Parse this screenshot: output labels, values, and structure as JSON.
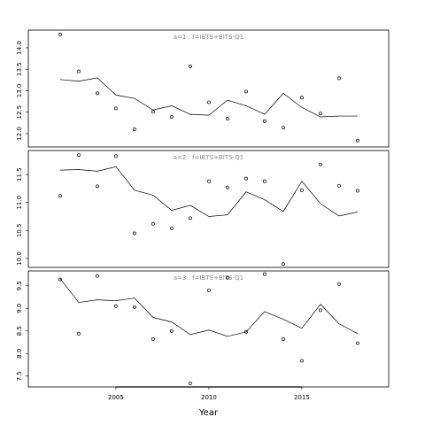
{
  "chart_data": [
    {
      "type": "line",
      "title": "a=1 : f=IBTS+BITS-Q1",
      "x": [
        2002,
        2003,
        2004,
        2005,
        2006,
        2007,
        2008,
        2009,
        2010,
        2011,
        2012,
        2013,
        2014,
        2015,
        2016,
        2017,
        2018
      ],
      "series": [
        {
          "style": "points",
          "color": "#000000",
          "values": [
            14.31,
            13.45,
            12.94,
            12.59,
            12.1,
            12.51,
            12.39,
            13.57,
            12.73,
            12.35,
            12.98,
            12.29,
            12.14,
            12.84,
            12.47,
            13.29,
            11.84
          ]
        },
        {
          "style": "line",
          "color": "#000000",
          "values": [
            13.26,
            13.22,
            13.3,
            12.9,
            12.82,
            12.55,
            12.65,
            12.45,
            12.43,
            12.78,
            12.65,
            12.45,
            12.94,
            12.61,
            12.39,
            12.41,
            12.41
          ]
        }
      ],
      "xlim": [
        2000.29,
        2019.67
      ],
      "ylim": [
        11.69,
        14.41
      ],
      "yticks": [
        {
          "value": 12,
          "label": "12.0"
        },
        12.5,
        {
          "value": 13,
          "label": "13.0"
        },
        13.5,
        {
          "value": 14,
          "label": "14.0"
        }
      ]
    },
    {
      "type": "line",
      "title": "a=2 : f=IBTS+BITS-Q1",
      "x": [
        2002,
        2003,
        2004,
        2005,
        2006,
        2007,
        2008,
        2009,
        2010,
        2011,
        2012,
        2013,
        2014,
        2015,
        2016,
        2017,
        2018
      ],
      "series": [
        {
          "style": "points",
          "color": "#000000",
          "values": [
            11.12,
            11.85,
            11.29,
            11.83,
            10.45,
            10.62,
            10.54,
            10.72,
            11.38,
            11.27,
            11.43,
            11.38,
            9.9,
            11.22,
            11.68,
            11.3,
            11.21
          ]
        },
        {
          "style": "line",
          "color": "#000000",
          "values": [
            11.58,
            11.59,
            11.56,
            11.64,
            11.22,
            11.13,
            10.86,
            10.95,
            10.75,
            10.78,
            11.19,
            11.05,
            10.84,
            11.38,
            10.98,
            10.76,
            10.83
          ]
        }
      ],
      "xlim": [
        2000.29,
        2019.67
      ],
      "ylim": [
        9.84,
        11.93
      ],
      "yticks": [
        {
          "value": 10,
          "label": "10.0"
        },
        10.5,
        {
          "value": 11,
          "label": "11.0"
        },
        11.5
      ]
    },
    {
      "type": "line",
      "title": "a=3 : f=IBTS+BITS-Q1",
      "xlabel": "Year",
      "x": [
        2002,
        2003,
        2004,
        2005,
        2006,
        2007,
        2008,
        2009,
        2010,
        2011,
        2012,
        2013,
        2014,
        2015,
        2016,
        2017,
        2018
      ],
      "series": [
        {
          "style": "points",
          "color": "#000000",
          "values": [
            9.64,
            8.44,
            9.72,
            9.05,
            9.03,
            8.32,
            8.5,
            7.34,
            9.4,
            9.68,
            8.48,
            9.76,
            8.32,
            7.84,
            8.96,
            9.54,
            8.23
          ]
        },
        {
          "style": "line",
          "color": "#000000",
          "values": [
            9.66,
            9.13,
            9.19,
            9.17,
            9.23,
            8.8,
            8.7,
            8.42,
            8.52,
            8.38,
            8.48,
            8.93,
            8.76,
            8.56,
            9.09,
            8.66,
            8.44
          ]
        }
      ],
      "xlim": [
        2000.29,
        2019.67
      ],
      "ylim": [
        7.26,
        9.83
      ],
      "xticks": [
        2005,
        2010,
        2015
      ],
      "yticks": [
        7.5,
        {
          "value": 8,
          "label": "8.0"
        },
        8.5,
        {
          "value": 9,
          "label": "9.0"
        },
        9.5
      ]
    }
  ]
}
